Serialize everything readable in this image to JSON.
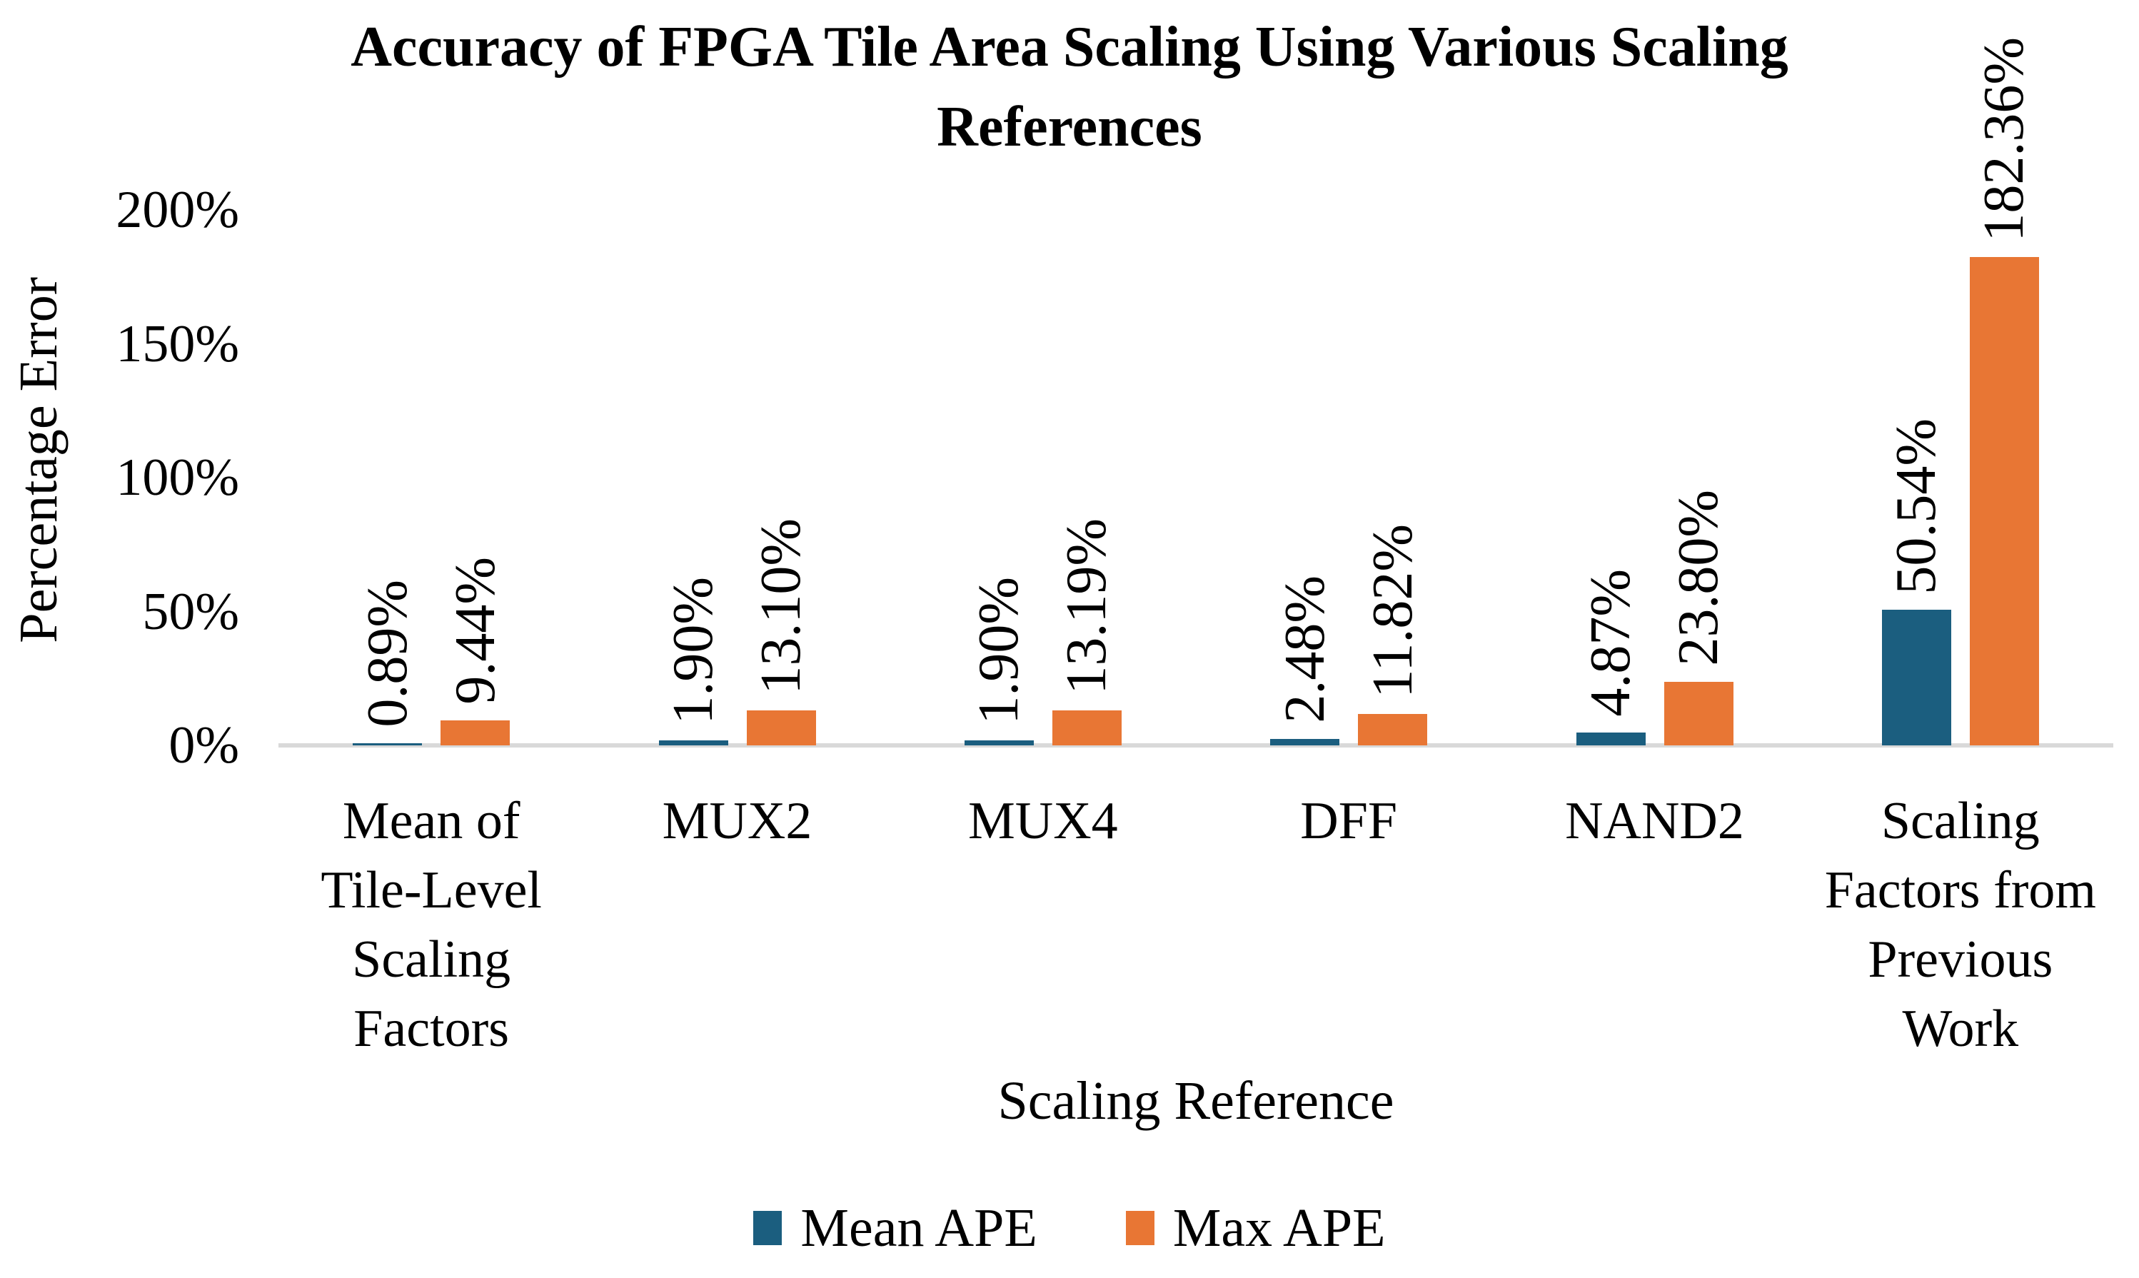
{
  "chart_data": {
    "type": "bar",
    "title": "Accuracy of FPGA Tile Area Scaling Using Various Scaling References",
    "title_lines": {
      "line1": "Accuracy of FPGA Tile Area Scaling Using Various Scaling",
      "line2": "References"
    },
    "xlabel": "Scaling Reference",
    "ylabel": "Percentage Error",
    "categories": [
      "Mean of Tile-Level Scaling Factors",
      "MUX2",
      "MUX4",
      "DFF",
      "NAND2",
      "Scaling Factors from Previous Work"
    ],
    "category_lines": [
      [
        "Mean of",
        "Tile-Level",
        "Scaling",
        "Factors"
      ],
      [
        "MUX2"
      ],
      [
        "MUX4"
      ],
      [
        "DFF"
      ],
      [
        "NAND2"
      ],
      [
        "Scaling",
        "Factors from",
        "Previous",
        "Work"
      ]
    ],
    "series": [
      {
        "name": "Mean APE",
        "color": "#1B5E7F",
        "values": [
          0.89,
          1.9,
          1.9,
          2.48,
          4.87,
          50.54
        ],
        "labels": [
          "0.89%",
          "1.90%",
          "1.90%",
          "2.48%",
          "4.87%",
          "50.54%"
        ]
      },
      {
        "name": "Max APE",
        "color": "#E87634",
        "values": [
          9.44,
          13.1,
          13.19,
          11.82,
          23.8,
          182.36
        ],
        "labels": [
          "9.44%",
          "13.10%",
          "13.19%",
          "11.82%",
          "23.80%",
          "182.36%"
        ]
      }
    ],
    "yticks": [
      {
        "label": "0%",
        "value": 0
      },
      {
        "label": "50%",
        "value": 50
      },
      {
        "label": "100%",
        "value": 100
      },
      {
        "label": "150%",
        "value": 150
      },
      {
        "label": "200%",
        "value": 200
      }
    ],
    "ylim": [
      0,
      200
    ],
    "grid": false,
    "legend_position": "bottom",
    "axis_line_color": "#D9D9D9",
    "data_label_rotation": 90
  }
}
